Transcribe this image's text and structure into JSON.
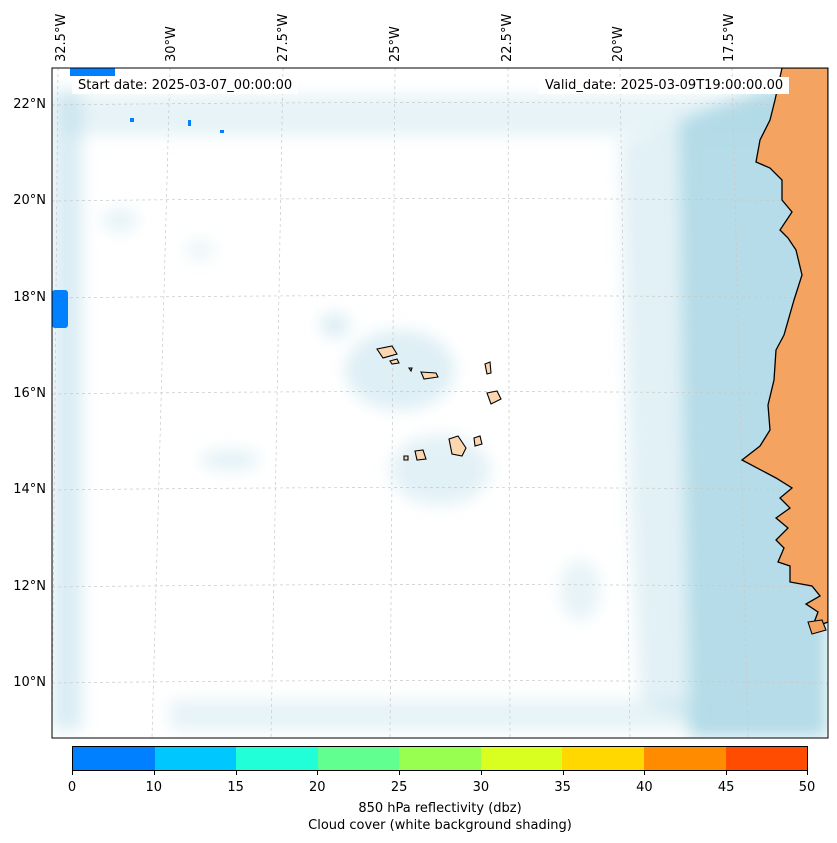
{
  "map": {
    "region": "Cabo Verde / Senegal coast",
    "land_color": "#f4a460",
    "ocean_color": "#ffffff",
    "cloud_color": "#add8e6",
    "reflectivity_color": "#0080ff",
    "gridlines": true,
    "longitude_labels": [
      "32.5°W",
      "30°W",
      "27.5°W",
      "25°W",
      "22.5°W",
      "20°W",
      "17.5°W"
    ],
    "latitude_labels": [
      "22°N",
      "20°N",
      "18°N",
      "16°N",
      "14°N",
      "12°N",
      "10°N"
    ]
  },
  "info": {
    "start_date": "Start date: 2025-03-07_00:00:00",
    "valid_date": "Valid_date: 2025-03-09T19:00:00.00"
  },
  "colorbar": {
    "ticks": [
      "0",
      "10",
      "15",
      "20",
      "25",
      "30",
      "35",
      "40",
      "45",
      "50"
    ],
    "colors": [
      "#0080ff",
      "#00c8ff",
      "#20ffd8",
      "#60ff90",
      "#98ff50",
      "#d8ff20",
      "#ffd800",
      "#ff8c00",
      "#ff4c00"
    ],
    "label": "850 hPa reflectivity (dbz)",
    "sublabel": "Cloud cover (white background shading)"
  }
}
